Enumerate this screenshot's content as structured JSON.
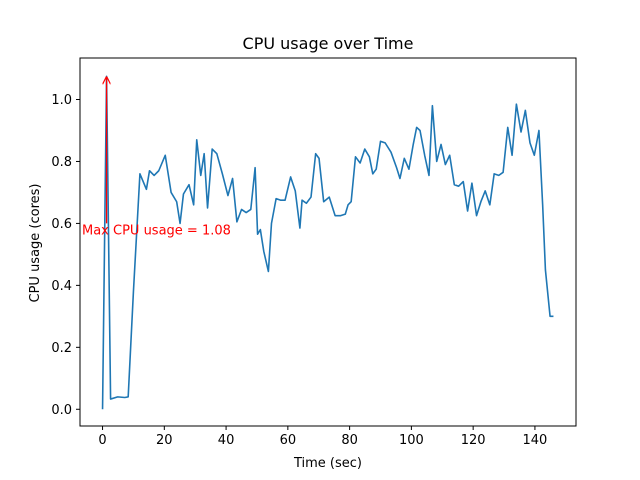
{
  "chart_data": {
    "type": "line",
    "title": "CPU usage over Time",
    "xlabel": "Time (sec)",
    "ylabel": "CPU usage (cores)",
    "xlim": [
      -7.3,
      153.3
    ],
    "ylim": [
      -0.054,
      1.134
    ],
    "xticks": [
      0,
      20,
      40,
      60,
      80,
      100,
      120,
      140
    ],
    "yticks": [
      0.0,
      0.2,
      0.4,
      0.6,
      0.8,
      1.0
    ],
    "xtick_labels": [
      "0",
      "20",
      "40",
      "60",
      "80",
      "100",
      "120",
      "140"
    ],
    "ytick_labels": [
      "0.0",
      "0.2",
      "0.4",
      "0.6",
      "0.8",
      "1.0"
    ],
    "grid": false,
    "series": [
      {
        "name": "CPU usage",
        "color": "#1f77b4",
        "x": [
          0,
          1.3,
          2.6,
          4.9,
          7.2,
          8.3,
          10.0,
          12.1,
          14.2,
          15.2,
          16.7,
          18.2,
          20.3,
          22.2,
          24.0,
          25.1,
          26.2,
          28.0,
          29.5,
          30.5,
          31.8,
          32.9,
          34.0,
          35.5,
          37.0,
          38.8,
          40.6,
          42.1,
          43.5,
          45.0,
          46.5,
          48.0,
          49.4,
          50.2,
          51.1,
          52.2,
          53.7,
          54.7,
          56.2,
          57.6,
          59.1,
          60.9,
          62.4,
          63.9,
          64.6,
          66.0,
          67.5,
          69.0,
          70.1,
          71.6,
          73.4,
          75.3,
          77.1,
          78.6,
          79.5,
          80.5,
          81.9,
          83.4,
          84.9,
          86.4,
          87.5,
          88.6,
          90.0,
          91.5,
          93.4,
          95.2,
          96.3,
          97.7,
          99.2,
          100.6,
          101.7,
          102.8,
          104.3,
          105.7,
          106.8,
          108.2,
          109.6,
          111.0,
          112.4,
          113.9,
          115.3,
          116.8,
          118.2,
          119.6,
          121.1,
          122.5,
          123.9,
          125.4,
          126.8,
          128.3,
          129.7,
          131.2,
          132.6,
          134.0,
          135.5,
          136.9,
          138.4,
          139.8,
          141.3,
          142.5,
          143.4,
          144.9,
          146.0
        ],
        "y": [
          0.0,
          1.075,
          0.033,
          0.04,
          0.038,
          0.04,
          0.38,
          0.76,
          0.71,
          0.77,
          0.755,
          0.77,
          0.82,
          0.7,
          0.67,
          0.6,
          0.695,
          0.725,
          0.66,
          0.87,
          0.755,
          0.825,
          0.65,
          0.84,
          0.825,
          0.76,
          0.69,
          0.745,
          0.605,
          0.645,
          0.635,
          0.645,
          0.78,
          0.565,
          0.58,
          0.51,
          0.445,
          0.6,
          0.68,
          0.675,
          0.675,
          0.75,
          0.705,
          0.585,
          0.675,
          0.665,
          0.685,
          0.825,
          0.81,
          0.67,
          0.685,
          0.625,
          0.625,
          0.63,
          0.66,
          0.67,
          0.815,
          0.795,
          0.84,
          0.815,
          0.76,
          0.775,
          0.865,
          0.86,
          0.83,
          0.78,
          0.745,
          0.81,
          0.775,
          0.855,
          0.91,
          0.9,
          0.82,
          0.755,
          0.98,
          0.8,
          0.855,
          0.79,
          0.82,
          0.725,
          0.72,
          0.735,
          0.64,
          0.73,
          0.625,
          0.67,
          0.705,
          0.66,
          0.76,
          0.755,
          0.765,
          0.91,
          0.82,
          0.985,
          0.895,
          0.965,
          0.86,
          0.82,
          0.9,
          0.66,
          0.45,
          0.3,
          0.3
        ]
      }
    ],
    "annotation": {
      "text": "Max CPU usage = 1.08",
      "point": [
        1.3,
        1.075
      ],
      "text_position": [
        -7.3,
        0.58
      ],
      "color": "#ff0000"
    }
  }
}
